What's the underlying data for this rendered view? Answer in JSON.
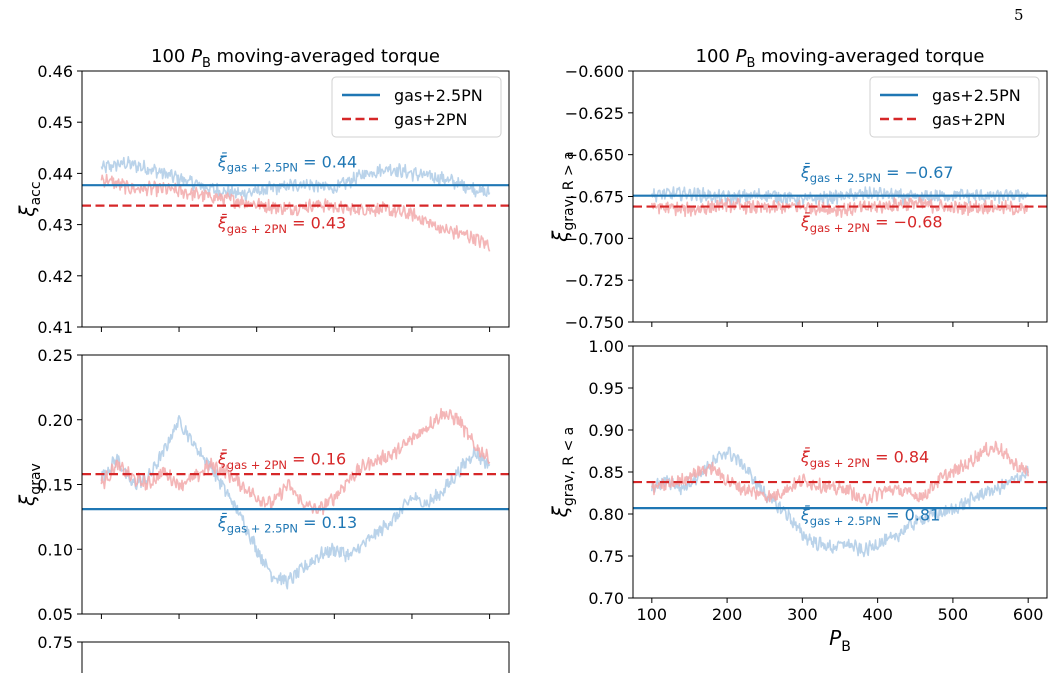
{
  "page_number": "5",
  "colors": {
    "gas_2_5PN": "#1f77b4",
    "gas_2PN": "#d62728",
    "gas_2_5PN_noise": "#aecbe6",
    "gas_2PN_noise": "#f2a9aa"
  },
  "legend": {
    "entry_1": "gas+2.5PN",
    "entry_2": "gas+2PN",
    "placement": "top-right"
  },
  "chart_data": [
    {
      "id": "acc_left",
      "type": "line",
      "title": "100 P_B moving-averaged torque",
      "title_parts": {
        "lead": "100 ",
        "sym": "P",
        "sub": "B",
        "tail": " moving-averaged torque"
      },
      "ylabel": {
        "sym": "ξ",
        "sub": "acc"
      },
      "xlabel": "",
      "xlim": [
        75,
        625
      ],
      "ylim": [
        0.41,
        0.46
      ],
      "yticks": [
        "0.41",
        "0.42",
        "0.43",
        "0.44",
        "0.45",
        "0.46"
      ],
      "ytick_values": [
        0.41,
        0.42,
        0.43,
        0.44,
        0.45,
        0.46
      ],
      "xticks": [
        100,
        200,
        300,
        400,
        500,
        600
      ],
      "legend": true,
      "series": [
        {
          "name": "gas+2.5PN",
          "style": "noisy",
          "x": [
            100,
            130,
            160,
            200,
            240,
            280,
            320,
            360,
            400,
            440,
            470,
            500,
            540,
            580,
            600
          ],
          "y": [
            0.441,
            0.442,
            0.441,
            0.439,
            0.437,
            0.436,
            0.437,
            0.438,
            0.437,
            0.44,
            0.441,
            0.44,
            0.439,
            0.437,
            0.436
          ]
        },
        {
          "name": "gas+2PN",
          "style": "noisy",
          "x": [
            100,
            140,
            180,
            220,
            260,
            300,
            340,
            380,
            420,
            460,
            500,
            540,
            570,
            600
          ],
          "y": [
            0.439,
            0.437,
            0.437,
            0.436,
            0.435,
            0.434,
            0.433,
            0.434,
            0.433,
            0.433,
            0.432,
            0.429,
            0.428,
            0.426
          ]
        }
      ],
      "mean_lines": [
        {
          "series": "gas+2.5PN",
          "value": 0.4377,
          "style": "solid",
          "label": {
            "sym": "ξ̄",
            "sub": "gas + 2.5PN",
            "text": " = 0.44"
          },
          "label_x": 250,
          "label_y": 0.4412
        },
        {
          "series": "gas+2PN",
          "value": 0.4337,
          "style": "dashed",
          "label": {
            "sym": "ξ̄",
            "sub": "gas + 2PN",
            "text": " = 0.43"
          },
          "label_x": 250,
          "label_y": 0.4292
        }
      ]
    },
    {
      "id": "grav_left",
      "type": "line",
      "ylabel": {
        "sym": "ξ",
        "sub": "grav"
      },
      "xlabel": "",
      "xlim": [
        75,
        625
      ],
      "ylim": [
        0.05,
        0.25
      ],
      "yticks": [
        "0.05",
        "0.10",
        "0.15",
        "0.20",
        "0.25"
      ],
      "ytick_values": [
        0.05,
        0.1,
        0.15,
        0.2,
        0.25
      ],
      "xticks": [
        100,
        200,
        300,
        400,
        500,
        600
      ],
      "legend": false,
      "series": [
        {
          "name": "gas+2.5PN",
          "style": "noisy",
          "x": [
            100,
            120,
            140,
            160,
            180,
            200,
            220,
            240,
            260,
            280,
            300,
            320,
            340,
            360,
            380,
            400,
            420,
            440,
            460,
            480,
            500,
            520,
            540,
            560,
            580,
            600
          ],
          "y": [
            0.155,
            0.17,
            0.15,
            0.155,
            0.175,
            0.2,
            0.18,
            0.165,
            0.145,
            0.125,
            0.1,
            0.08,
            0.075,
            0.085,
            0.095,
            0.1,
            0.095,
            0.105,
            0.115,
            0.125,
            0.14,
            0.135,
            0.145,
            0.16,
            0.175,
            0.165
          ]
        },
        {
          "name": "gas+2PN",
          "style": "noisy",
          "x": [
            100,
            120,
            140,
            160,
            180,
            200,
            220,
            240,
            260,
            280,
            300,
            320,
            340,
            360,
            380,
            400,
            420,
            440,
            460,
            480,
            500,
            520,
            540,
            560,
            580,
            600
          ],
          "y": [
            0.15,
            0.165,
            0.155,
            0.15,
            0.16,
            0.15,
            0.155,
            0.165,
            0.16,
            0.15,
            0.14,
            0.135,
            0.15,
            0.135,
            0.13,
            0.14,
            0.155,
            0.165,
            0.17,
            0.175,
            0.185,
            0.195,
            0.205,
            0.2,
            0.18,
            0.17
          ]
        }
      ],
      "mean_lines": [
        {
          "series": "gas+2.5PN",
          "value": 0.131,
          "style": "solid",
          "label": {
            "sym": "ξ̄",
            "sub": "gas + 2.5PN",
            "text": " = 0.13"
          },
          "label_x": 250,
          "label_y": 0.1165
        },
        {
          "series": "gas+2PN",
          "value": 0.158,
          "style": "dashed",
          "label": {
            "sym": "ξ̄",
            "sub": "gas + 2PN",
            "text": " = 0.16"
          },
          "label_x": 250,
          "label_y": 0.1655
        }
      ]
    },
    {
      "id": "partial_left",
      "type": "line",
      "ylim_top_label": "0.75",
      "yticks": [
        "0.75"
      ]
    },
    {
      "id": "grav_out_right",
      "type": "line",
      "title": "100 P_B moving-averaged torque",
      "title_parts": {
        "lead": "100 ",
        "sym": "P",
        "sub": "B",
        "tail": " moving-averaged torque"
      },
      "ylabel": {
        "sym": "ξ",
        "sub": "grav,  R > a"
      },
      "xlabel": "",
      "xlim": [
        75,
        625
      ],
      "ylim": [
        -0.75,
        -0.6
      ],
      "yticks": [
        "−0.750",
        "−0.725",
        "−0.700",
        "−0.675",
        "−0.650",
        "−0.625",
        "−0.600"
      ],
      "ytick_values": [
        -0.75,
        -0.725,
        -0.7,
        -0.675,
        -0.65,
        -0.625,
        -0.6
      ],
      "xticks": [
        100,
        200,
        300,
        400,
        500,
        600
      ],
      "legend": true,
      "series": [
        {
          "name": "gas+2.5PN",
          "style": "noisy",
          "x": [
            100,
            150,
            200,
            250,
            300,
            350,
            400,
            450,
            500,
            550,
            600
          ],
          "y": [
            -0.674,
            -0.673,
            -0.676,
            -0.674,
            -0.677,
            -0.675,
            -0.673,
            -0.676,
            -0.674,
            -0.675,
            -0.674
          ]
        },
        {
          "name": "gas+2PN",
          "style": "noisy",
          "x": [
            100,
            150,
            200,
            250,
            300,
            350,
            400,
            450,
            500,
            550,
            600
          ],
          "y": [
            -0.681,
            -0.683,
            -0.68,
            -0.682,
            -0.681,
            -0.683,
            -0.681,
            -0.679,
            -0.682,
            -0.681,
            -0.683
          ]
        }
      ],
      "mean_lines": [
        {
          "series": "gas+2.5PN",
          "value": -0.6745,
          "style": "solid",
          "label": {
            "sym": "ξ̄",
            "sub": "gas + 2.5PN",
            "text": " = −0.67"
          },
          "label_x": 298,
          "label_y": -0.6638
        },
        {
          "series": "gas+2PN",
          "value": -0.681,
          "style": "dashed",
          "label": {
            "sym": "ξ̄",
            "sub": "gas + 2PN",
            "text": " = −0.68"
          },
          "label_x": 298,
          "label_y": -0.6935
        }
      ]
    },
    {
      "id": "grav_in_right",
      "type": "line",
      "ylabel": {
        "sym": "ξ",
        "sub": "grav,  R < a"
      },
      "xlabel": {
        "sym": "P",
        "sub": "B"
      },
      "xlim": [
        75,
        625
      ],
      "ylim": [
        0.7,
        1.0
      ],
      "yticks": [
        "0.70",
        "0.75",
        "0.80",
        "0.85",
        "0.90",
        "0.95",
        "1.00"
      ],
      "ytick_values": [
        0.7,
        0.75,
        0.8,
        0.85,
        0.9,
        0.95,
        1.0
      ],
      "xticks": [
        100,
        200,
        300,
        400,
        500,
        600
      ],
      "xticklabels": [
        "100",
        "200",
        "300",
        "400",
        "500",
        "600"
      ],
      "legend": false,
      "series": [
        {
          "name": "gas+2.5PN",
          "style": "noisy",
          "x": [
            100,
            120,
            140,
            160,
            180,
            200,
            220,
            240,
            260,
            280,
            300,
            320,
            340,
            360,
            380,
            400,
            420,
            440,
            460,
            480,
            500,
            520,
            540,
            560,
            580,
            600
          ],
          "y": [
            0.83,
            0.84,
            0.83,
            0.845,
            0.86,
            0.875,
            0.86,
            0.835,
            0.815,
            0.8,
            0.775,
            0.765,
            0.76,
            0.765,
            0.755,
            0.765,
            0.77,
            0.785,
            0.795,
            0.8,
            0.805,
            0.815,
            0.825,
            0.83,
            0.84,
            0.85
          ]
        },
        {
          "name": "gas+2PN",
          "style": "noisy",
          "x": [
            100,
            120,
            140,
            160,
            180,
            200,
            220,
            240,
            260,
            280,
            300,
            320,
            340,
            360,
            380,
            400,
            420,
            440,
            460,
            480,
            500,
            520,
            540,
            560,
            580,
            600
          ],
          "y": [
            0.83,
            0.835,
            0.84,
            0.85,
            0.855,
            0.84,
            0.83,
            0.825,
            0.82,
            0.83,
            0.84,
            0.835,
            0.83,
            0.83,
            0.815,
            0.825,
            0.83,
            0.825,
            0.82,
            0.84,
            0.85,
            0.86,
            0.875,
            0.88,
            0.86,
            0.85
          ]
        }
      ],
      "mean_lines": [
        {
          "series": "gas+2.5PN",
          "value": 0.807,
          "style": "solid",
          "label": {
            "sym": "ξ̄",
            "sub": "gas + 2.5PN",
            "text": " = 0.81"
          },
          "label_x": 298,
          "label_y": 0.7925
        },
        {
          "series": "gas+2PN",
          "value": 0.838,
          "style": "dashed",
          "label": {
            "sym": "ξ̄",
            "sub": "gas + 2PN",
            "text": " = 0.84"
          },
          "label_x": 298,
          "label_y": 0.8615
        }
      ]
    }
  ]
}
